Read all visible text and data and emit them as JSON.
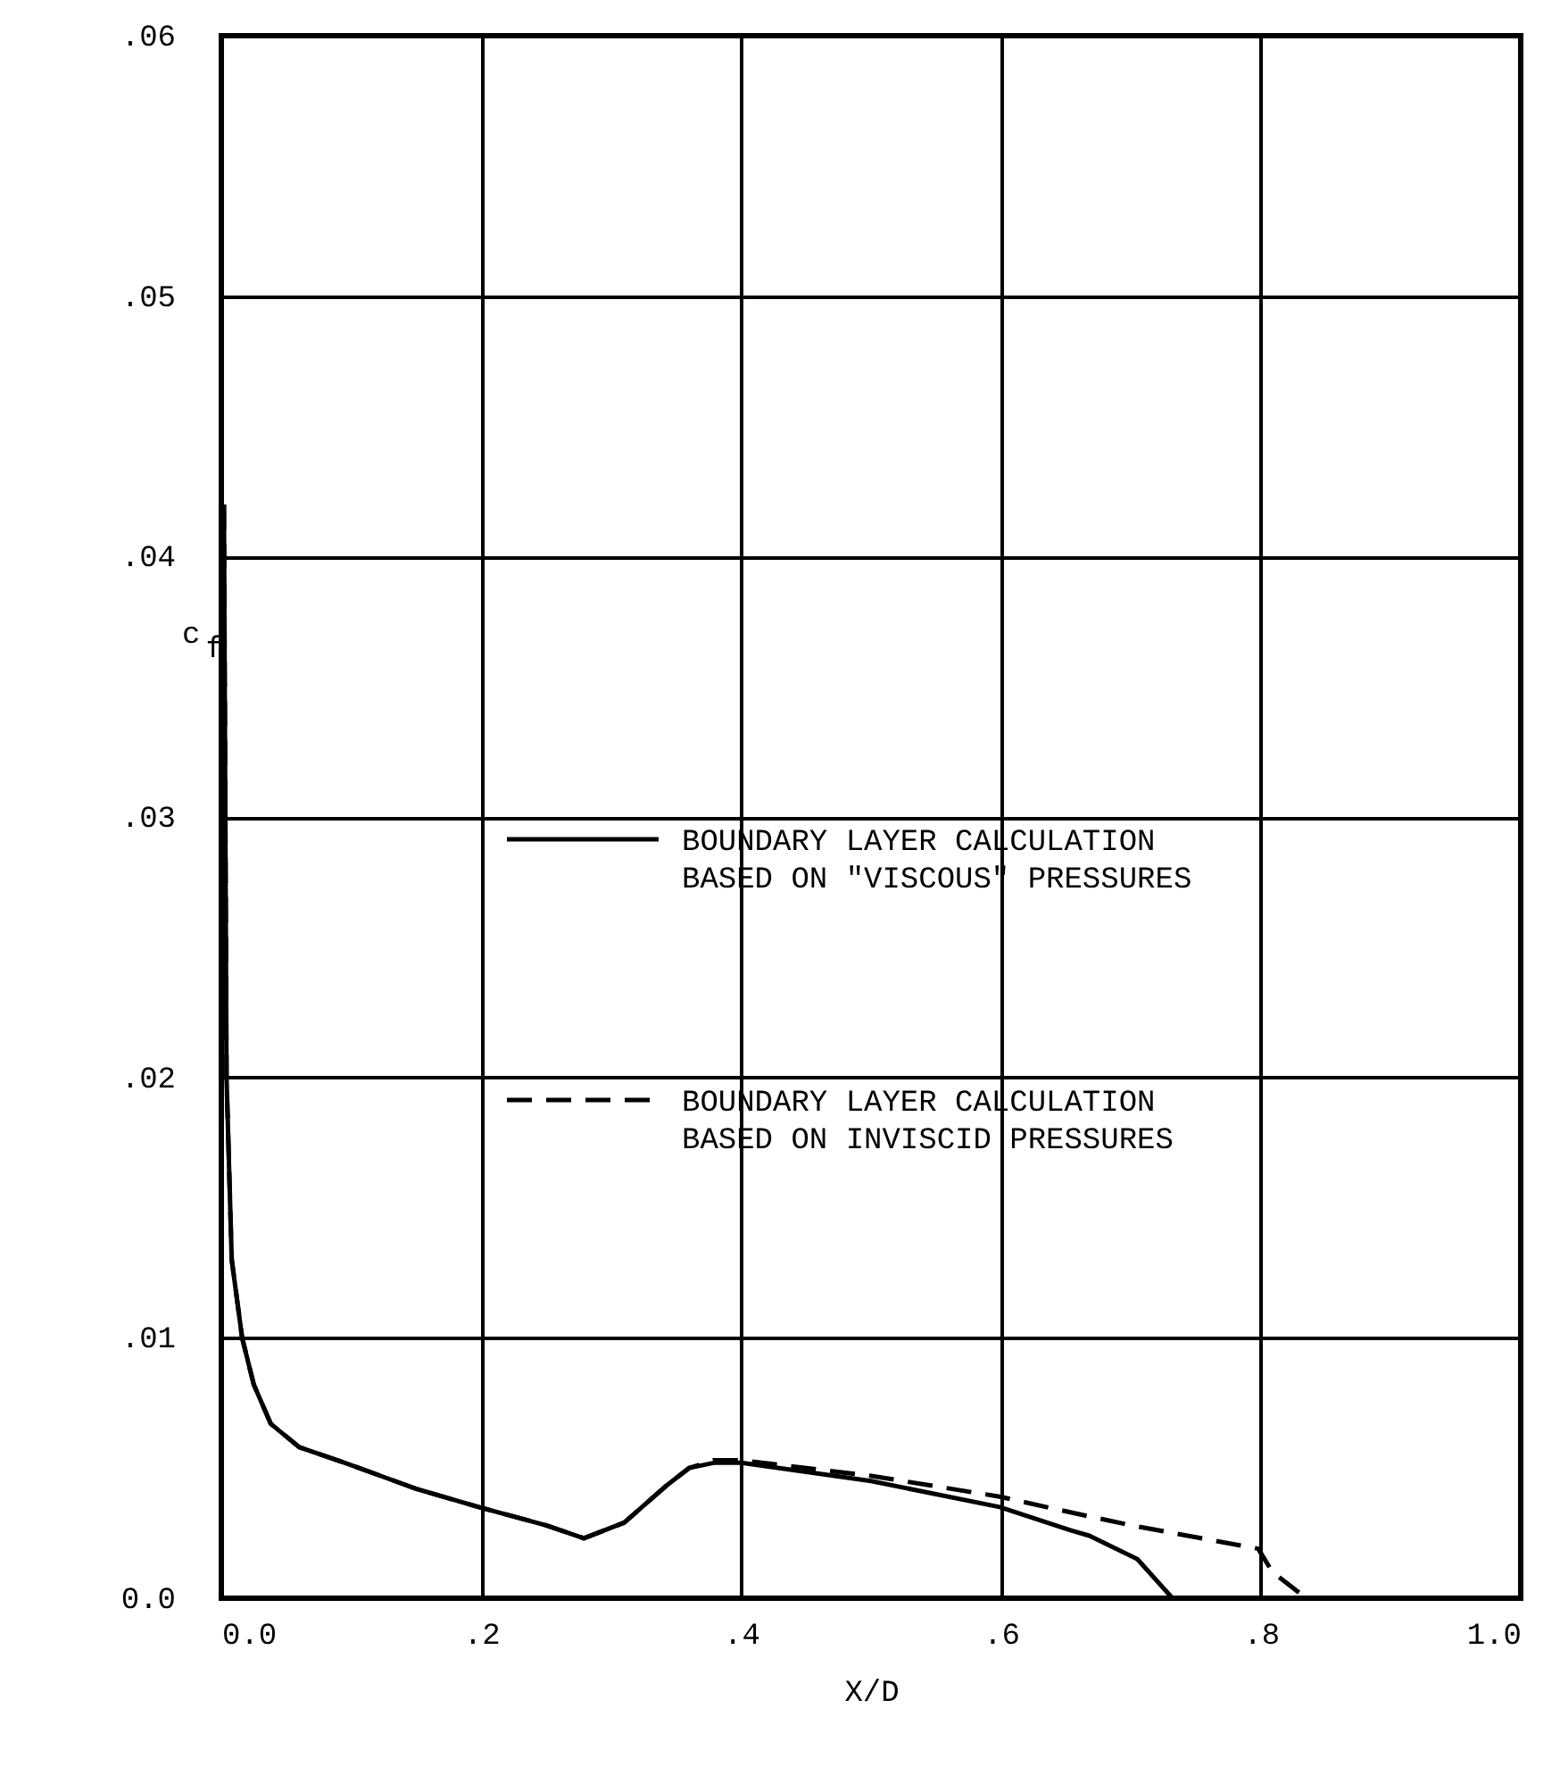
{
  "chart_data": {
    "type": "line",
    "xlabel": "X/D",
    "ylabel": "c$_{f}$",
    "xlim": [
      0,
      1
    ],
    "ylim": [
      0,
      0.06
    ],
    "xticks": [
      {
        "value": 0,
        "label": "0.0"
      },
      {
        "value": 0.2,
        "label": ".2"
      },
      {
        "value": 0.4,
        "label": ".4"
      },
      {
        "value": 0.6,
        "label": ".6"
      },
      {
        "value": 0.8,
        "label": ".8"
      },
      {
        "value": 1,
        "label": "1.0"
      }
    ],
    "yticks": [
      {
        "value": 0,
        "label": "0.0"
      },
      {
        "value": 0.01,
        "label": ".01"
      },
      {
        "value": 0.02,
        "label": ".02"
      },
      {
        "value": 0.03,
        "label": ".03"
      },
      {
        "value": 0.04,
        "label": ".04"
      },
      {
        "value": 0.05,
        "label": ".05"
      },
      {
        "value": 0.06,
        "label": ".06"
      }
    ],
    "grid": true,
    "legend": "right",
    "marker": "none",
    "series": [
      {
        "name": "BOUNDARY LAYER CALCULATION BASED ON \"VISCOUS\" PRESSURES",
        "color": "#000000",
        "line_style": "solid",
        "x": [
          0.002,
          0.004,
          0.008,
          0.016,
          0.025,
          0.038,
          0.06,
          0.095,
          0.15,
          0.198,
          0.25,
          0.279,
          0.31,
          0.342,
          0.36,
          0.379,
          0.4,
          0.5,
          0.599,
          0.654,
          0.668,
          0.705,
          0.732
        ],
        "values": [
          0.042,
          0.02,
          0.013,
          0.01,
          0.0082,
          0.0067,
          0.0058,
          0.0052,
          0.0042,
          0.0035,
          0.0028,
          0.0023,
          0.0029,
          0.0043,
          0.005,
          0.0052,
          0.0052,
          0.0045,
          0.0035,
          0.0026,
          0.0024,
          0.0015,
          0
        ]
      },
      {
        "name": "BOUNDARY LAYER CALCULATION BASED ON INVISCID PRESSURES",
        "color": "#000000",
        "line_style": "dashed",
        "x": [
          0.002,
          0.004,
          0.008,
          0.016,
          0.025,
          0.038,
          0.06,
          0.095,
          0.15,
          0.198,
          0.25,
          0.279,
          0.31,
          0.342,
          0.36,
          0.379,
          0.4,
          0.5,
          0.599,
          0.644,
          0.7,
          0.798,
          0.809,
          0.835
        ],
        "values": [
          0.042,
          0.02,
          0.013,
          0.01,
          0.0082,
          0.0067,
          0.0058,
          0.0052,
          0.0042,
          0.0035,
          0.0028,
          0.0023,
          0.0029,
          0.0043,
          0.005,
          0.0053,
          0.0053,
          0.0047,
          0.0039,
          0.0034,
          0.0028,
          0.0019,
          0.001,
          0
        ]
      }
    ]
  }
}
